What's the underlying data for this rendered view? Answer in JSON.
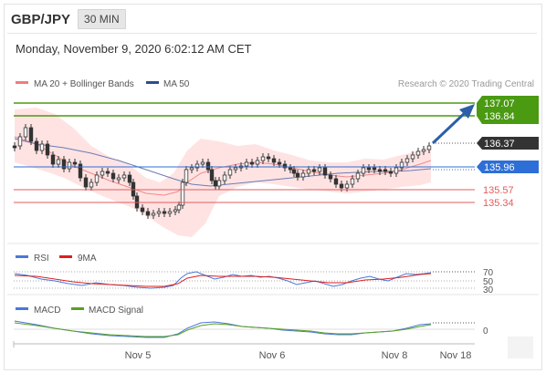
{
  "header": {
    "symbol": "GBP/JPY",
    "interval": "30 MIN",
    "timestamp": "Monday, November 9, 2020 6:02:12 AM CET"
  },
  "legend": {
    "ma20_bb": "MA 20 + Bollinger Bands",
    "ma50": "MA 50",
    "credit": "Research © 2020 Trading Central",
    "rsi": "RSI",
    "rsi_ma": "9MA",
    "macd": "MACD",
    "macd_signal": "MACD Signal"
  },
  "levels": {
    "r2": "137.07",
    "r1": "136.84",
    "last": "136.37",
    "pivot": "135.96",
    "s1": "135.57",
    "s2": "135.34"
  },
  "rsi_ticks": [
    "70",
    "50",
    "30"
  ],
  "macd_ticks": [
    "0"
  ],
  "x_labels": [
    "Nov 5",
    "Nov 6",
    "Nov 8",
    "Nov 18"
  ],
  "colors": {
    "resistance": "#4a9a12",
    "support": "#e35b5b",
    "pivot": "#2d6fd6",
    "last": "#333333",
    "up_candle": "#ffffff",
    "down_candle": "#333333",
    "bollinger": "#ffd0d0",
    "ma50": "#5b6fa8",
    "arrow": "#2c5fa8",
    "rsi": "#4a78d9",
    "macd_signal": "#59a020"
  },
  "chart_data": {
    "type": "candlestick",
    "series": [
      {
        "name": "GBP/JPY 30 MIN"
      }
    ],
    "y_levels": [
      137.07,
      136.84,
      136.37,
      135.96,
      135.57,
      135.34
    ],
    "rsi_levels": [
      70,
      50,
      30
    ]
  }
}
